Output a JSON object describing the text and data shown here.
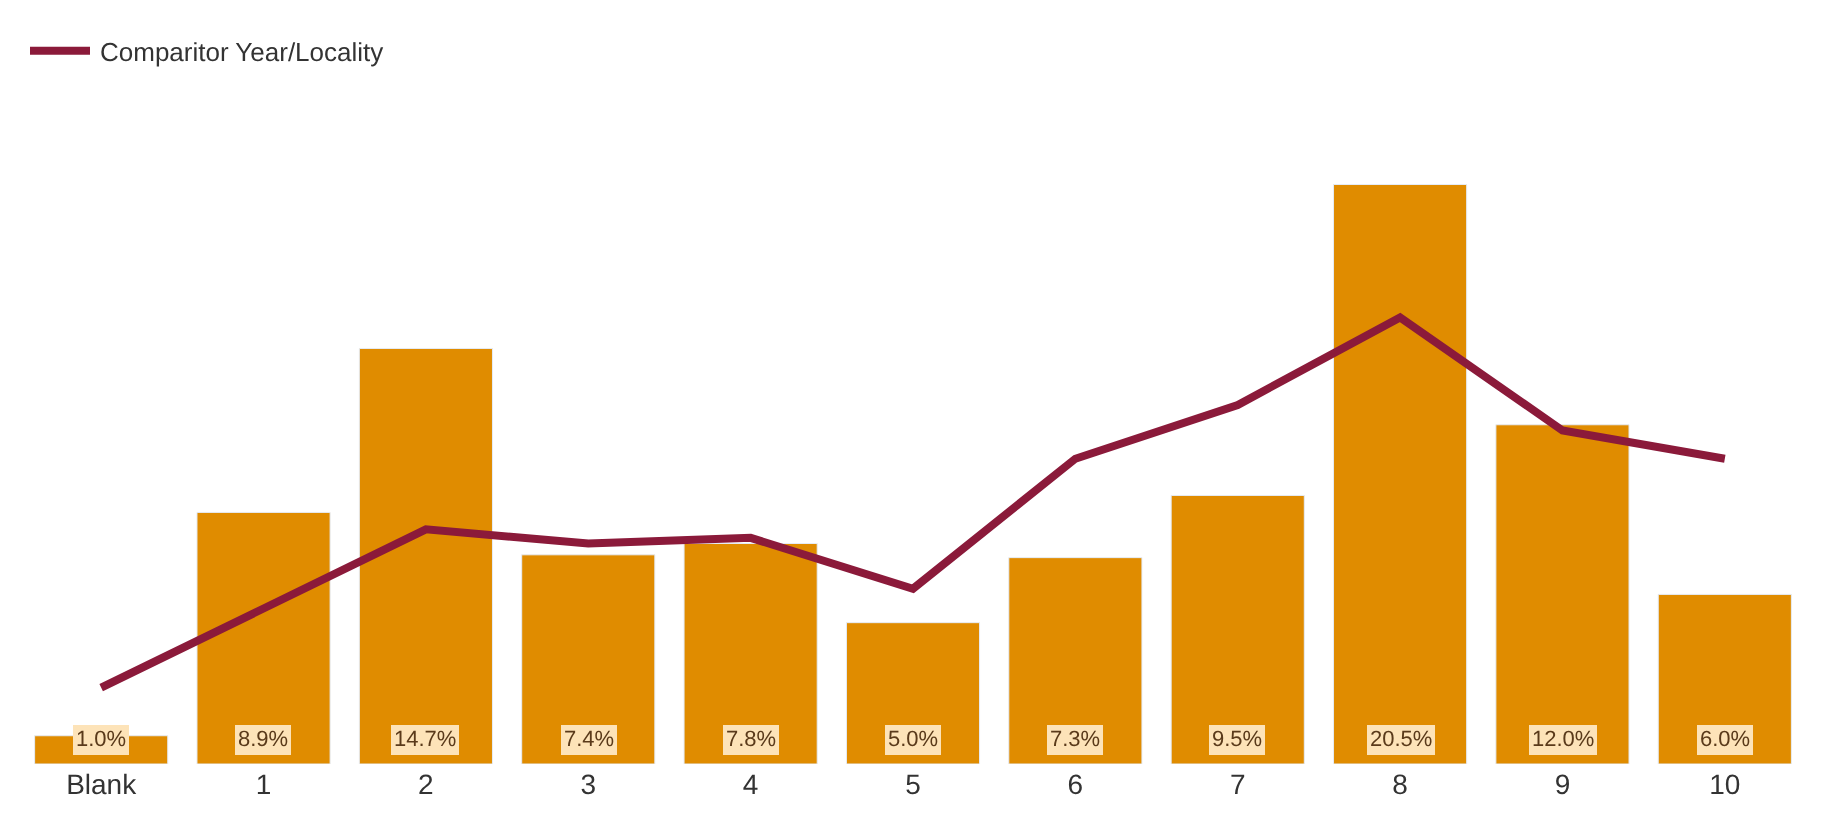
{
  "chart_data": {
    "type": "bar",
    "categories": [
      "Blank",
      "1",
      "2",
      "3",
      "4",
      "5",
      "6",
      "7",
      "8",
      "9",
      "10"
    ],
    "series": [
      {
        "color": "#e08c00",
        "values": [
          1.0,
          8.9,
          14.7,
          7.4,
          7.8,
          5.0,
          7.3,
          9.5,
          20.5,
          12.0,
          6.0
        ],
        "value_labels": [
          "1.0%",
          "8.9%",
          "14.7%",
          "7.4%",
          "7.8%",
          "5.0%",
          "7.3%",
          "9.5%",
          "20.5%",
          "12.0%",
          "6.0%"
        ]
      },
      {
        "type": "line",
        "name": "Comparitor Year/Locality",
        "color": "#8b1a3a",
        "values": [
          2.7,
          5.5,
          8.3,
          7.8,
          8.0,
          6.2,
          10.8,
          12.7,
          15.8,
          11.8,
          10.8
        ]
      }
    ],
    "legend": "top left",
    "grid": false,
    "marker": "none",
    "line_style": "solid"
  }
}
